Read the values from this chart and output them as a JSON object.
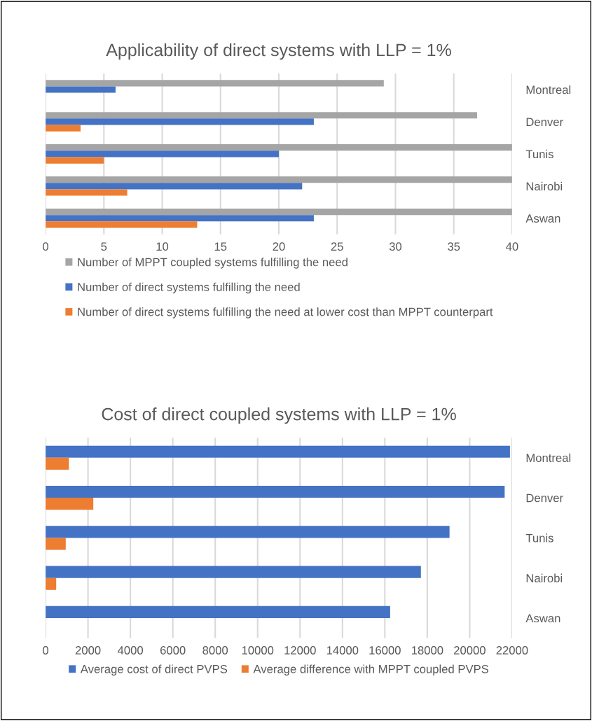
{
  "chart_data": [
    {
      "type": "bar",
      "orientation": "horizontal",
      "title": "Applicability of direct systems with LLP = 1%",
      "categories": [
        "Montreal",
        "Denver",
        "Tunis",
        "Nairobi",
        "Aswan"
      ],
      "series": [
        {
          "name": "Number of MPPT coupled systems fulfilling the need",
          "color": "#a5a5a5",
          "values": [
            29,
            37,
            40,
            40,
            40
          ]
        },
        {
          "name": "Number of direct systems fulfilling the need",
          "color": "#4472c4",
          "values": [
            6,
            23,
            20,
            22,
            23
          ]
        },
        {
          "name": "Number of direct systems fulfilling the need at lower cost than MPPT counterpart",
          "color": "#ed7d31",
          "values": [
            0,
            3,
            5,
            7,
            13
          ]
        }
      ],
      "xlim": [
        0,
        40
      ],
      "xticks": [
        0,
        5,
        10,
        15,
        20,
        25,
        30,
        35,
        40
      ],
      "grid": "x",
      "legend": "bottom"
    },
    {
      "type": "bar",
      "orientation": "horizontal",
      "title": "Cost of direct coupled systems with LLP = 1%",
      "categories": [
        "Montreal",
        "Denver",
        "Tunis",
        "Nairobi",
        "Aswan"
      ],
      "series": [
        {
          "name": "Average cost of direct PVPS",
          "color": "#4472c4",
          "values": [
            21900,
            21650,
            19050,
            17700,
            16250
          ]
        },
        {
          "name": "Average difference with MPPT coupled PVPS",
          "color": "#ed7d31",
          "values": [
            1100,
            2250,
            950,
            500,
            0
          ]
        }
      ],
      "xlim": [
        0,
        22000
      ],
      "xticks": [
        0,
        2000,
        4000,
        6000,
        8000,
        10000,
        12000,
        14000,
        16000,
        18000,
        20000,
        22000
      ],
      "grid": "x",
      "legend": "bottom"
    }
  ]
}
